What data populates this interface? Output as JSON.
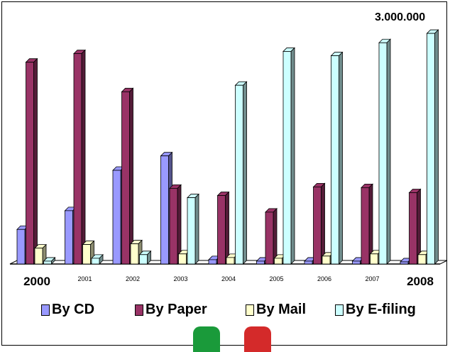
{
  "chart_data": {
    "type": "bar",
    "categories": [
      "2000",
      "2001",
      "2002",
      "2003",
      "2004",
      "2005",
      "2006",
      "2007",
      "2008"
    ],
    "series": [
      {
        "name": "By CD",
        "color": "#9999ff",
        "values": [
          480000,
          740000,
          1300000,
          1500000,
          60000,
          40000,
          40000,
          40000,
          30000
        ]
      },
      {
        "name": "By Paper",
        "color": "#993366",
        "values": [
          2800000,
          2920000,
          2390000,
          1050000,
          950000,
          720000,
          1070000,
          1060000,
          990000
        ]
      },
      {
        "name": "By Mail",
        "color": "#ffffcc",
        "values": [
          220000,
          270000,
          280000,
          140000,
          90000,
          80000,
          110000,
          140000,
          130000
        ]
      },
      {
        "name": "By E-filing",
        "color": "#ccffff",
        "values": [
          40000,
          80000,
          130000,
          920000,
          2480000,
          2950000,
          2890000,
          3070000,
          3200000
        ]
      }
    ],
    "annotation": "3.000.000",
    "ylim": [
      0,
      3250000
    ],
    "legend_position": "bottom",
    "grid": false
  },
  "colors": {
    "flag_green": "#1a9a3a",
    "flag_red": "#d42a2a"
  }
}
